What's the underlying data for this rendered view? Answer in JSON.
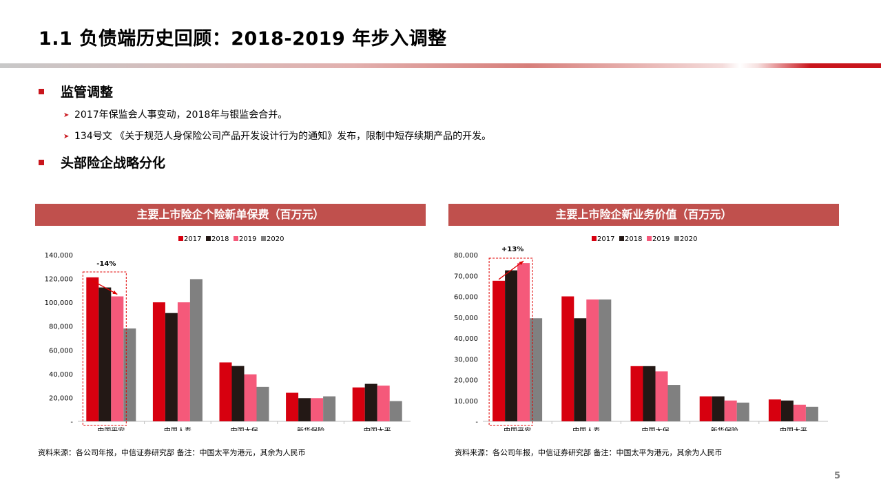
{
  "title": "1.1 负债端历史回顾：2018-2019 年步入调整",
  "sections": [
    {
      "heading": "监管调整",
      "bullets": [
        "2017年保监会人事变动，2018年与银监会合并。",
        "134号文 《关于规范人身保险公司产品开发设计行为的通知》发布，限制中短存续期产品的开发。"
      ]
    },
    {
      "heading": "头部险企战略分化",
      "bullets": []
    }
  ],
  "colors": {
    "accent": "#c9151c",
    "header": "#c0504d",
    "series": [
      "#d7000f",
      "#231815",
      "#f5597a",
      "#808080"
    ]
  },
  "chart_data": [
    {
      "type": "bar",
      "title": "主要上市险企个险新单保费（百万元）",
      "categories": [
        "中国平安",
        "中国人寿",
        "中国太保",
        "新华保险",
        "中国太平"
      ],
      "series": [
        {
          "name": "2017",
          "values": [
            121000,
            100000,
            49500,
            24000,
            28500
          ]
        },
        {
          "name": "2018",
          "values": [
            112500,
            91000,
            46500,
            19500,
            31500
          ]
        },
        {
          "name": "2019",
          "values": [
            105000,
            100000,
            39500,
            19500,
            30000
          ]
        },
        {
          "name": "2020",
          "values": [
            78000,
            119500,
            29000,
            21000,
            17000
          ]
        }
      ],
      "ylim": [
        0,
        140000
      ],
      "yticks": [
        "-",
        "20,000",
        "40,000",
        "60,000",
        "80,000",
        "100,000",
        "120,000",
        "140,000"
      ],
      "legend": "top",
      "annotation": "-14%",
      "grid": false
    },
    {
      "type": "bar",
      "title": "主要上市险企新业务价值（百万元）",
      "categories": [
        "中国平安",
        "中国人寿",
        "中国太保",
        "新华保险",
        "中国太平"
      ],
      "series": [
        {
          "name": "2017",
          "values": [
            67500,
            60000,
            26500,
            12000,
            10500
          ]
        },
        {
          "name": "2018",
          "values": [
            72500,
            49500,
            26500,
            12000,
            10000
          ]
        },
        {
          "name": "2019",
          "values": [
            76000,
            58500,
            24000,
            10000,
            8000
          ]
        },
        {
          "name": "2020",
          "values": [
            49500,
            58500,
            17500,
            9000,
            7000
          ]
        }
      ],
      "ylim": [
        0,
        80000
      ],
      "yticks": [
        "-",
        "10,000",
        "20,000",
        "30,000",
        "40,000",
        "50,000",
        "60,000",
        "70,000",
        "80,000"
      ],
      "legend": "top",
      "annotation": "+13%",
      "grid": false
    }
  ],
  "source": "资料来源：各公司年报，中信证券研究部 备注：中国太平为港元，其余为人民币",
  "page_number": "5"
}
